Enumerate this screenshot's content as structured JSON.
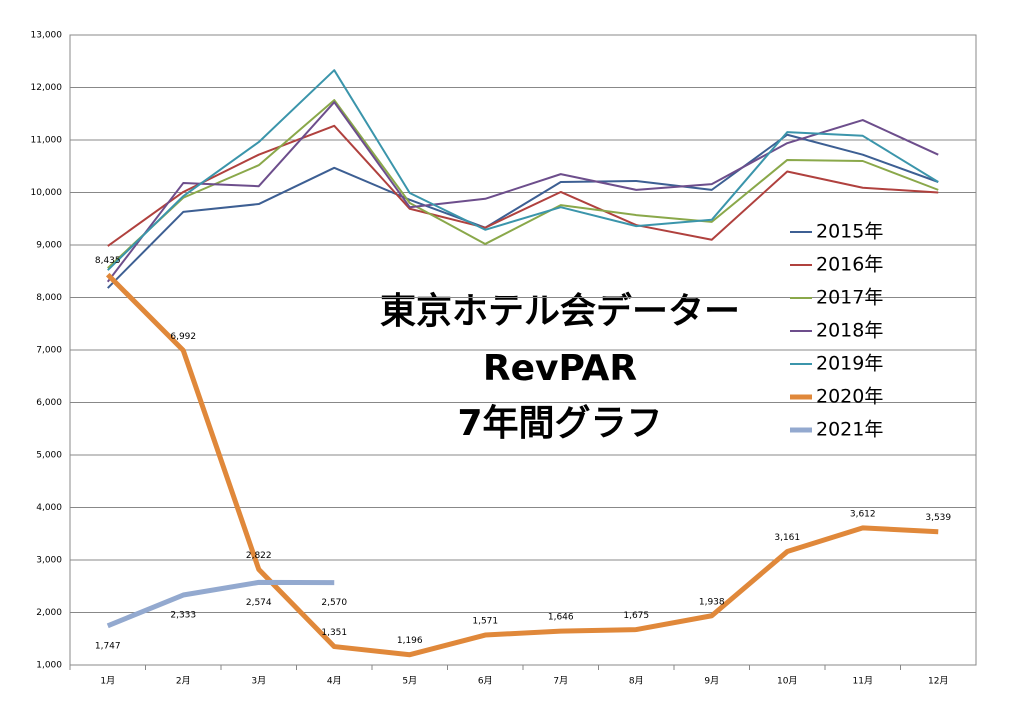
{
  "chart_data": {
    "type": "line",
    "title": [
      "東京ホテル会データー",
      "RevPAR",
      "7年間グラフ"
    ],
    "categories": [
      "1月",
      "2月",
      "3月",
      "4月",
      "5月",
      "6月",
      "7月",
      "8月",
      "9月",
      "10月",
      "11月",
      "12月"
    ],
    "ylim": [
      1000,
      13000
    ],
    "yticks": [
      {
        "value": 1000,
        "label": "1,000"
      },
      {
        "value": 2000,
        "label": "2,000"
      },
      {
        "value": 3000,
        "label": "3,000"
      },
      {
        "value": 4000,
        "label": "4,000"
      },
      {
        "value": 5000,
        "label": "5,000"
      },
      {
        "value": 6000,
        "label": "6,000"
      },
      {
        "value": 7000,
        "label": "7,000"
      },
      {
        "value": 8000,
        "label": "8,000"
      },
      {
        "value": 9000,
        "label": "9,000"
      },
      {
        "value": 10000,
        "label": "10,000"
      },
      {
        "value": 11000,
        "label": "11,000"
      },
      {
        "value": 12000,
        "label": "12,000"
      },
      {
        "value": 13000,
        "label": "13,000"
      }
    ],
    "grid": true,
    "legend": "right",
    "series": [
      {
        "name": "2015年",
        "color": "#3d5f93",
        "line_width": 2,
        "values": [
          8180,
          9630,
          9780,
          10470,
          9860,
          9330,
          10200,
          10220,
          10050,
          11100,
          10720,
          10200
        ]
      },
      {
        "name": "2016年",
        "color": "#b0413e",
        "line_width": 2,
        "values": [
          8980,
          10010,
          10720,
          11270,
          9690,
          9330,
          10010,
          9380,
          9100,
          10400,
          10090,
          10000
        ]
      },
      {
        "name": "2017年",
        "color": "#8aa84a",
        "line_width": 2,
        "values": [
          8560,
          9900,
          10520,
          11760,
          9800,
          9020,
          9760,
          9570,
          9440,
          10620,
          10600,
          10050
        ]
      },
      {
        "name": "2018年",
        "color": "#6d4e8c",
        "line_width": 2,
        "values": [
          8300,
          10180,
          10120,
          11720,
          9720,
          9880,
          10350,
          10050,
          10160,
          10940,
          11380,
          10720
        ]
      },
      {
        "name": "2019年",
        "color": "#3b95ab",
        "line_width": 2,
        "values": [
          8520,
          9930,
          10960,
          12330,
          9990,
          9290,
          9720,
          9360,
          9480,
          11150,
          11080,
          10200
        ]
      },
      {
        "name": "2020年",
        "color": "#e0883a",
        "line_width": 5,
        "label_position": "above",
        "values": [
          8435,
          6992,
          2822,
          1351,
          1196,
          1571,
          1646,
          1675,
          1938,
          3161,
          3612,
          3539
        ],
        "value_labels": [
          "8,435",
          "6,992",
          "2,822",
          "1,351",
          "1,196",
          "1,571",
          "1,646",
          "1,675",
          "1,938",
          "3,161",
          "3,612",
          "3,539"
        ]
      },
      {
        "name": "2021年",
        "color": "#93a9cf",
        "line_width": 5,
        "label_position": "below",
        "values": [
          1747,
          2333,
          2574,
          2570,
          null,
          null,
          null,
          null,
          null,
          null,
          null,
          null
        ],
        "value_labels": [
          "1,747",
          "2,333",
          "2,574",
          "2,570",
          null,
          null,
          null,
          null,
          null,
          null,
          null,
          null
        ]
      }
    ]
  }
}
